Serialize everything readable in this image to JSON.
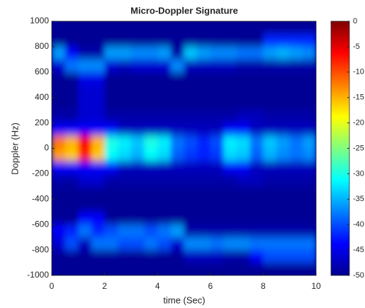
{
  "chart_data": {
    "type": "heatmap",
    "title": "Micro-Doppler Signature",
    "x_label": "time (Sec)",
    "y_label": "Doppler (Hz)",
    "xlim": [
      0,
      10
    ],
    "xticks": [
      0,
      2,
      4,
      6,
      8,
      10
    ],
    "ylim": [
      -1000,
      1000
    ],
    "yticks": [
      -1000,
      -800,
      -600,
      -400,
      -200,
      0,
      200,
      400,
      600,
      800,
      1000
    ],
    "clim": [
      -50,
      0
    ],
    "colorbar_ticks": [
      0,
      -5,
      -10,
      -15,
      -20,
      -25,
      -30,
      -35,
      -40,
      -45,
      -50
    ],
    "colormap": "jet",
    "x": [
      0.25,
      0.75,
      1.25,
      1.75,
      2.25,
      2.75,
      3.25,
      3.75,
      4.25,
      4.75,
      5.25,
      5.75,
      6.25,
      6.75,
      7.25,
      7.75,
      8.25,
      8.75,
      9.25,
      9.75
    ],
    "y": [
      950,
      850,
      750,
      650,
      550,
      450,
      350,
      250,
      150,
      50,
      -50,
      -150,
      -250,
      -350,
      -450,
      -550,
      -650,
      -750,
      -850,
      -950
    ],
    "z": [
      [
        -49,
        -49,
        -49,
        -49,
        -49,
        -49,
        -49,
        -49,
        -49,
        -49,
        -49,
        -49,
        -49,
        -49,
        -49,
        -49,
        -49,
        -49,
        -49,
        -49
      ],
      [
        -49,
        -49,
        -49,
        -49,
        -49,
        -49,
        -49,
        -49,
        -49,
        -49,
        -49,
        -49,
        -49,
        -49,
        -49,
        -49,
        -42,
        -42,
        -42,
        -42
      ],
      [
        -36,
        -44,
        -48,
        -48,
        -36,
        -36,
        -37,
        -37,
        -36,
        -48,
        -34,
        -36,
        -37,
        -37,
        -38,
        -38,
        -36,
        -35,
        -36,
        -37
      ],
      [
        -46,
        -38,
        -37,
        -37,
        -46,
        -47,
        -46,
        -46,
        -46,
        -37,
        -47,
        -47,
        -47,
        -47,
        -48,
        -48,
        -48,
        -48,
        -48,
        -48
      ],
      [
        -49,
        -49,
        -45,
        -45,
        -49,
        -49,
        -49,
        -49,
        -49,
        -49,
        -49,
        -49,
        -49,
        -49,
        -49,
        -49,
        -49,
        -49,
        -49,
        -49
      ],
      [
        -49,
        -49,
        -46,
        -46,
        -49,
        -49,
        -49,
        -49,
        -49,
        -49,
        -49,
        -49,
        -49,
        -49,
        -49,
        -49,
        -49,
        -49,
        -49,
        -49
      ],
      [
        -49,
        -49,
        -46,
        -46,
        -49,
        -49,
        -49,
        -49,
        -49,
        -49,
        -49,
        -49,
        -49,
        -49,
        -49,
        -49,
        -49,
        -49,
        -49,
        -49
      ],
      [
        -48,
        -48,
        -46,
        -46,
        -48,
        -48,
        -48,
        -48,
        -48,
        -48,
        -48,
        -48,
        -48,
        -48,
        -47,
        -47,
        -48,
        -48,
        -48,
        -48
      ],
      [
        -44,
        -44,
        -44,
        -44,
        -44,
        -47,
        -47,
        -47,
        -47,
        -47,
        -47,
        -47,
        -47,
        -44,
        -44,
        -47,
        -47,
        -47,
        -47,
        -47
      ],
      [
        -12,
        -15,
        -6,
        -15,
        -30,
        -32,
        -34,
        -30,
        -32,
        -38,
        -40,
        -42,
        -40,
        -32,
        -33,
        -38,
        -34,
        -36,
        -38,
        -36
      ],
      [
        -14,
        -16,
        -8,
        -16,
        -31,
        -33,
        -35,
        -31,
        -33,
        -39,
        -41,
        -42,
        -41,
        -33,
        -34,
        -39,
        -35,
        -37,
        -38,
        -37
      ],
      [
        -44,
        -44,
        -44,
        -44,
        -44,
        -47,
        -47,
        -47,
        -47,
        -47,
        -47,
        -47,
        -47,
        -44,
        -44,
        -47,
        -47,
        -47,
        -47,
        -47
      ],
      [
        -48,
        -48,
        -46,
        -46,
        -48,
        -48,
        -48,
        -48,
        -48,
        -48,
        -48,
        -48,
        -48,
        -48,
        -47,
        -47,
        -48,
        -48,
        -48,
        -48
      ],
      [
        -49,
        -49,
        -49,
        -49,
        -49,
        -49,
        -49,
        -49,
        -49,
        -49,
        -49,
        -49,
        -49,
        -49,
        -49,
        -49,
        -49,
        -49,
        -49,
        -49
      ],
      [
        -49,
        -49,
        -49,
        -49,
        -49,
        -49,
        -49,
        -49,
        -49,
        -49,
        -49,
        -49,
        -49,
        -49,
        -49,
        -49,
        -49,
        -49,
        -49,
        -49
      ],
      [
        -49,
        -49,
        -44,
        -44,
        -49,
        -49,
        -49,
        -49,
        -49,
        -49,
        -49,
        -49,
        -49,
        -49,
        -49,
        -49,
        -49,
        -49,
        -49,
        -49
      ],
      [
        -44,
        -42,
        -38,
        -42,
        -40,
        -38,
        -38,
        -40,
        -38,
        -36,
        -48,
        -48,
        -48,
        -48,
        -48,
        -48,
        -48,
        -48,
        -48,
        -48
      ],
      [
        -46,
        -40,
        -47,
        -38,
        -38,
        -40,
        -40,
        -38,
        -40,
        -46,
        -37,
        -37,
        -38,
        -37,
        -37,
        -38,
        -38,
        -38,
        -38,
        -38
      ],
      [
        -49,
        -49,
        -49,
        -49,
        -49,
        -49,
        -49,
        -49,
        -49,
        -49,
        -47,
        -47,
        -47,
        -48,
        -48,
        -44,
        -40,
        -40,
        -40,
        -40
      ],
      [
        -49,
        -49,
        -49,
        -49,
        -49,
        -49,
        -49,
        -49,
        -49,
        -49,
        -49,
        -49,
        -49,
        -49,
        -49,
        -49,
        -49,
        -49,
        -49,
        -49
      ]
    ]
  }
}
